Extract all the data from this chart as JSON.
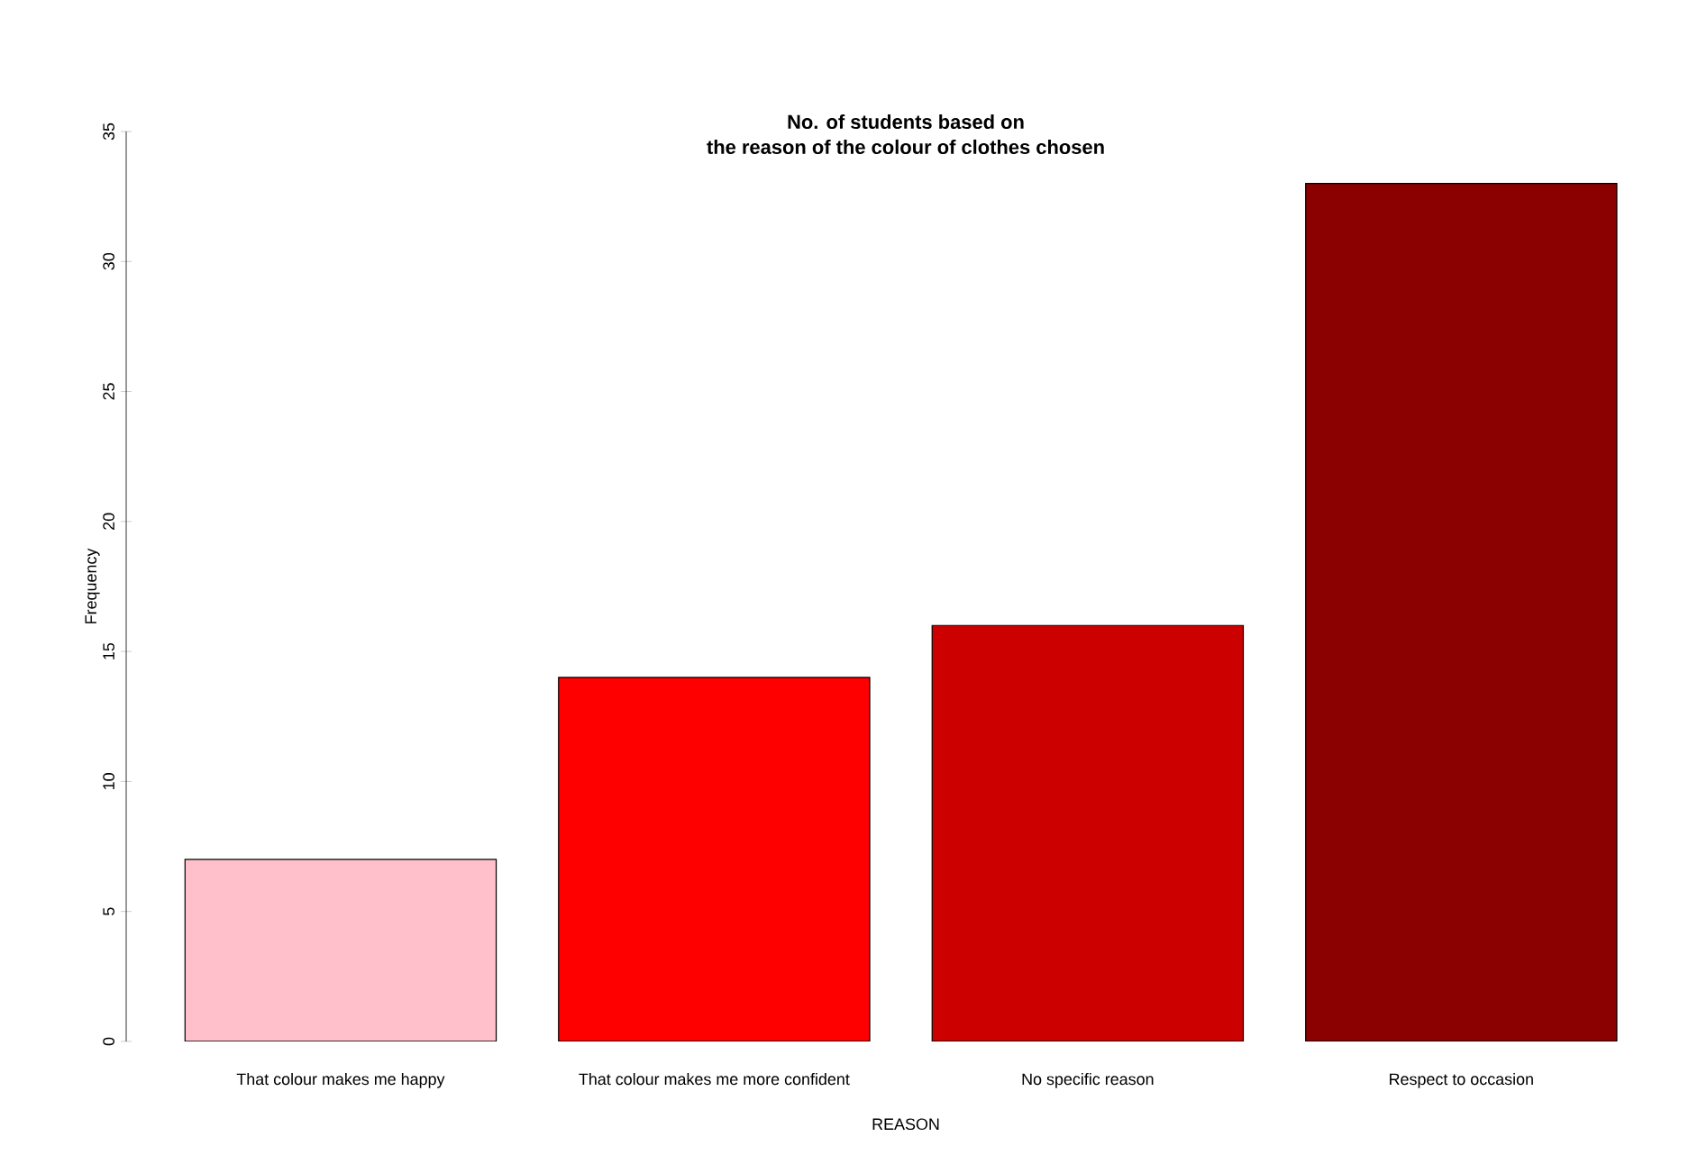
{
  "chart_data": {
    "type": "bar",
    "title": "No. of students based on\nthe reason of the colour of clothes chosen",
    "xlabel": "REASON",
    "ylabel": "Frequency",
    "categories": [
      "That colour makes me happy",
      "That colour makes me more confident",
      "No specific reason",
      "Respect to occasion"
    ],
    "values": [
      7,
      14,
      16,
      33
    ],
    "colors": [
      "#ffc0cb",
      "#ff0000",
      "#cd0000",
      "#8b0000"
    ],
    "ylim": [
      0,
      35
    ],
    "yticks": [
      0,
      5,
      10,
      15,
      20,
      25,
      30,
      35
    ],
    "grid": false
  }
}
